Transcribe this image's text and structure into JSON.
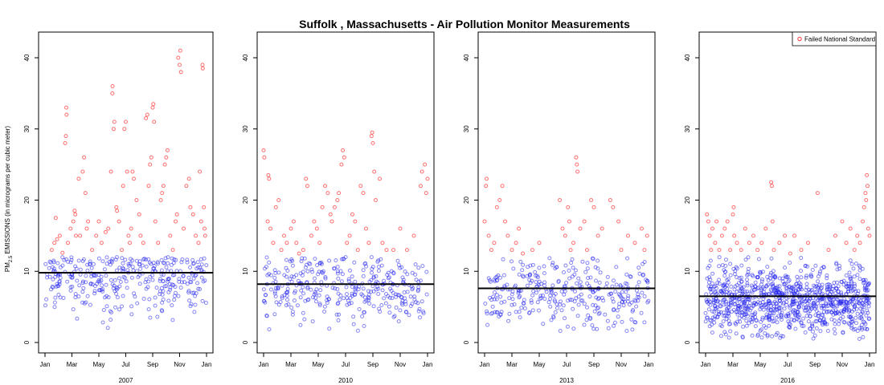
{
  "chart_data": {
    "type": "scatter",
    "title": "Suffolk , Massachusetts - Air Pollution Monitor Measurements",
    "ylabel_main": "PM",
    "ylabel_sub": "2.5",
    "ylabel_rest": " EMISSIONS (in micrograms per cubic meter)",
    "legend": {
      "label": "Failed National Standard",
      "position": "top-right",
      "color": "#ff3333"
    },
    "colors": {
      "failed": "#ff3333",
      "passed": "#2222ee",
      "mean_line": "#000000"
    },
    "threshold": 12,
    "ylim": [
      0,
      43
    ],
    "yticks": [
      "0",
      "10",
      "20",
      "30",
      "40"
    ],
    "xticks": [
      "Jan",
      "Mar",
      "May",
      "Jul",
      "Sep",
      "Nov",
      "Jan"
    ],
    "xtick_months": [
      0,
      2,
      4,
      6,
      8,
      10,
      12
    ],
    "panels": [
      {
        "year_label": "2007",
        "mean": 9.8,
        "passed_range": [
          2,
          12
        ],
        "passed_count": 340,
        "failed_points": [
          [
            0.5,
            13
          ],
          [
            0.7,
            14
          ],
          [
            0.9,
            14.5
          ],
          [
            1.1,
            15
          ],
          [
            1.3,
            12.6
          ],
          [
            0.8,
            17.5
          ],
          [
            1.5,
            28
          ],
          [
            1.55,
            29
          ],
          [
            1.6,
            32
          ],
          [
            1.58,
            33
          ],
          [
            1.7,
            14
          ],
          [
            1.9,
            16
          ],
          [
            2.1,
            17
          ],
          [
            2.2,
            18.5
          ],
          [
            2.25,
            18
          ],
          [
            2.3,
            15
          ],
          [
            2.5,
            23
          ],
          [
            2.6,
            15
          ],
          [
            2.8,
            24
          ],
          [
            2.9,
            26
          ],
          [
            3.0,
            21
          ],
          [
            3.1,
            16
          ],
          [
            3.2,
            17
          ],
          [
            3.5,
            13
          ],
          [
            3.8,
            15
          ],
          [
            4.0,
            17
          ],
          [
            4.2,
            14
          ],
          [
            4.5,
            15.5
          ],
          [
            4.7,
            16
          ],
          [
            4.9,
            24
          ],
          [
            5.0,
            35
          ],
          [
            5.02,
            36
          ],
          [
            5.1,
            30
          ],
          [
            5.15,
            31
          ],
          [
            5.3,
            19
          ],
          [
            5.35,
            18.5
          ],
          [
            5.5,
            17
          ],
          [
            5.7,
            13
          ],
          [
            5.8,
            22
          ],
          [
            5.9,
            30
          ],
          [
            6.0,
            31
          ],
          [
            6.1,
            24
          ],
          [
            6.2,
            15
          ],
          [
            6.3,
            14
          ],
          [
            6.4,
            16
          ],
          [
            6.5,
            24
          ],
          [
            6.6,
            23
          ],
          [
            6.8,
            20
          ],
          [
            7.0,
            18
          ],
          [
            7.1,
            15
          ],
          [
            7.3,
            14
          ],
          [
            7.5,
            31.5
          ],
          [
            7.6,
            32
          ],
          [
            7.7,
            22
          ],
          [
            7.8,
            25
          ],
          [
            7.9,
            26
          ],
          [
            8.0,
            33
          ],
          [
            8.05,
            33.5
          ],
          [
            8.1,
            31
          ],
          [
            8.2,
            17
          ],
          [
            8.4,
            14
          ],
          [
            8.6,
            20
          ],
          [
            8.7,
            21
          ],
          [
            8.8,
            22
          ],
          [
            8.9,
            25
          ],
          [
            9.0,
            26
          ],
          [
            9.1,
            27
          ],
          [
            9.3,
            15
          ],
          [
            9.5,
            13
          ],
          [
            9.7,
            17
          ],
          [
            9.8,
            18
          ],
          [
            9.9,
            40
          ],
          [
            10.0,
            39
          ],
          [
            10.05,
            41
          ],
          [
            10.1,
            38
          ],
          [
            10.3,
            16
          ],
          [
            10.5,
            22
          ],
          [
            10.7,
            23
          ],
          [
            10.8,
            19
          ],
          [
            11.0,
            18
          ],
          [
            11.2,
            15
          ],
          [
            11.4,
            14
          ],
          [
            11.5,
            24
          ],
          [
            11.6,
            17
          ],
          [
            11.7,
            39
          ],
          [
            11.72,
            38.5
          ],
          [
            11.8,
            19
          ],
          [
            11.85,
            16
          ],
          [
            11.9,
            15
          ]
        ]
      },
      {
        "year_label": "2010",
        "mean": 8.2,
        "passed_range": [
          1.5,
          12
        ],
        "passed_count": 340,
        "failed_points": [
          [
            0.0,
            27
          ],
          [
            0.05,
            26
          ],
          [
            0.3,
            17
          ],
          [
            0.35,
            23.5
          ],
          [
            0.4,
            23
          ],
          [
            0.5,
            16
          ],
          [
            0.7,
            14
          ],
          [
            0.9,
            19
          ],
          [
            1.1,
            20
          ],
          [
            1.3,
            13
          ],
          [
            1.5,
            15
          ],
          [
            1.7,
            14
          ],
          [
            2.0,
            16
          ],
          [
            2.2,
            17
          ],
          [
            2.4,
            14
          ],
          [
            2.6,
            12.5
          ],
          [
            2.9,
            13
          ],
          [
            3.1,
            23
          ],
          [
            3.2,
            22
          ],
          [
            3.5,
            15
          ],
          [
            3.7,
            17
          ],
          [
            3.9,
            16
          ],
          [
            4.1,
            14
          ],
          [
            4.3,
            19
          ],
          [
            4.5,
            22
          ],
          [
            4.7,
            21
          ],
          [
            4.9,
            18
          ],
          [
            5.0,
            17
          ],
          [
            5.2,
            19
          ],
          [
            5.4,
            20
          ],
          [
            5.5,
            21
          ],
          [
            5.7,
            25
          ],
          [
            5.8,
            27
          ],
          [
            5.9,
            26
          ],
          [
            6.1,
            14
          ],
          [
            6.3,
            15
          ],
          [
            6.5,
            18
          ],
          [
            6.7,
            17
          ],
          [
            6.9,
            13
          ],
          [
            7.1,
            22
          ],
          [
            7.3,
            21
          ],
          [
            7.5,
            16
          ],
          [
            7.7,
            14
          ],
          [
            7.9,
            29
          ],
          [
            7.95,
            29.5
          ],
          [
            8.0,
            28
          ],
          [
            8.1,
            24
          ],
          [
            8.2,
            20
          ],
          [
            8.5,
            23
          ],
          [
            8.7,
            14
          ],
          [
            9.0,
            13
          ],
          [
            9.5,
            13
          ],
          [
            10.0,
            16
          ],
          [
            10.5,
            13
          ],
          [
            11.0,
            15
          ],
          [
            11.5,
            22
          ],
          [
            11.6,
            24
          ],
          [
            11.8,
            25
          ],
          [
            11.9,
            21
          ],
          [
            12.0,
            23
          ]
        ]
      },
      {
        "year_label": "2013",
        "mean": 7.6,
        "passed_range": [
          1,
          12
        ],
        "passed_count": 330,
        "failed_points": [
          [
            0.0,
            17
          ],
          [
            0.1,
            22
          ],
          [
            0.15,
            23
          ],
          [
            0.3,
            15
          ],
          [
            0.5,
            13
          ],
          [
            0.7,
            14
          ],
          [
            0.9,
            19
          ],
          [
            1.1,
            20
          ],
          [
            1.3,
            22
          ],
          [
            1.5,
            17
          ],
          [
            1.7,
            15
          ],
          [
            2.0,
            13
          ],
          [
            2.3,
            14
          ],
          [
            2.5,
            16
          ],
          [
            2.8,
            12.5
          ],
          [
            3.5,
            13
          ],
          [
            4.0,
            14
          ],
          [
            5.5,
            20
          ],
          [
            5.7,
            16
          ],
          [
            5.9,
            15
          ],
          [
            6.1,
            19
          ],
          [
            6.2,
            17
          ],
          [
            6.3,
            13
          ],
          [
            6.5,
            14
          ],
          [
            6.7,
            26
          ],
          [
            6.75,
            25
          ],
          [
            6.8,
            24
          ],
          [
            7.0,
            16
          ],
          [
            7.3,
            17
          ],
          [
            7.5,
            13
          ],
          [
            7.8,
            20
          ],
          [
            8.0,
            19
          ],
          [
            8.3,
            15
          ],
          [
            8.6,
            16
          ],
          [
            9.2,
            20
          ],
          [
            9.4,
            19
          ],
          [
            9.8,
            17
          ],
          [
            10.0,
            13
          ],
          [
            10.5,
            15
          ],
          [
            11.0,
            14
          ],
          [
            11.5,
            16
          ],
          [
            11.7,
            13
          ],
          [
            11.9,
            15
          ]
        ]
      },
      {
        "year_label": "2016",
        "mean": 6.5,
        "passed_range": [
          0.5,
          12
        ],
        "passed_count": 980,
        "failed_points": [
          [
            0.1,
            18
          ],
          [
            0.2,
            17
          ],
          [
            0.3,
            15
          ],
          [
            0.4,
            13
          ],
          [
            0.5,
            16
          ],
          [
            0.7,
            14
          ],
          [
            0.8,
            17
          ],
          [
            1.0,
            13
          ],
          [
            1.2,
            15
          ],
          [
            1.4,
            16
          ],
          [
            1.6,
            17
          ],
          [
            1.8,
            13
          ],
          [
            2.0,
            18
          ],
          [
            2.05,
            19
          ],
          [
            2.1,
            15
          ],
          [
            2.3,
            14
          ],
          [
            2.6,
            13
          ],
          [
            2.9,
            16
          ],
          [
            3.2,
            14
          ],
          [
            3.5,
            15
          ],
          [
            3.8,
            13
          ],
          [
            4.1,
            14
          ],
          [
            4.4,
            16
          ],
          [
            4.8,
            22.5
          ],
          [
            4.85,
            22
          ],
          [
            4.9,
            17
          ],
          [
            5.0,
            13
          ],
          [
            5.4,
            14
          ],
          [
            5.8,
            15
          ],
          [
            6.2,
            12.5
          ],
          [
            6.5,
            15
          ],
          [
            7.0,
            13
          ],
          [
            7.5,
            14
          ],
          [
            8.2,
            21
          ],
          [
            9.0,
            13
          ],
          [
            9.5,
            15
          ],
          [
            10.0,
            17
          ],
          [
            10.3,
            14
          ],
          [
            10.6,
            16
          ],
          [
            10.9,
            13
          ],
          [
            11.1,
            15
          ],
          [
            11.3,
            14
          ],
          [
            11.5,
            17
          ],
          [
            11.6,
            19
          ],
          [
            11.7,
            21
          ],
          [
            11.75,
            20
          ],
          [
            11.8,
            23.5
          ],
          [
            11.85,
            22
          ],
          [
            11.9,
            16
          ],
          [
            12.0,
            15
          ]
        ]
      }
    ]
  }
}
